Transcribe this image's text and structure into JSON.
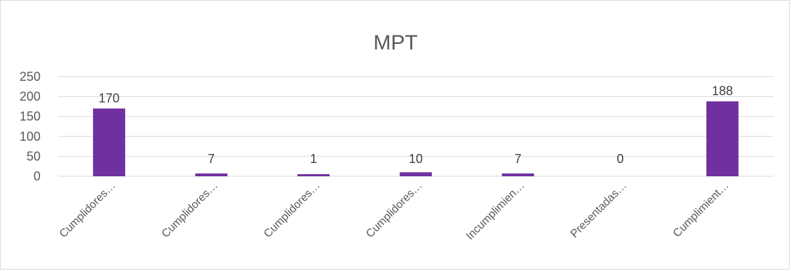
{
  "chart_data": {
    "type": "bar",
    "title": "MPT",
    "categories": [
      "Cumplidores…",
      "Cumplidores…",
      "Cumplidores…",
      "Cumplidores…",
      "Incumplimien…",
      "Presentadas…",
      "Cumplimient…"
    ],
    "values": [
      170,
      7,
      1,
      10,
      7,
      0,
      188
    ],
    "data_labels": [
      "170",
      "7",
      "1",
      "10",
      "7",
      "0",
      "188"
    ],
    "ylim": [
      0,
      250
    ],
    "yticks": [
      0,
      50,
      100,
      150,
      200,
      250
    ],
    "grid": true,
    "legend": "none",
    "bar_color": "#7030a0",
    "grid_color": "#d9d9d9"
  }
}
